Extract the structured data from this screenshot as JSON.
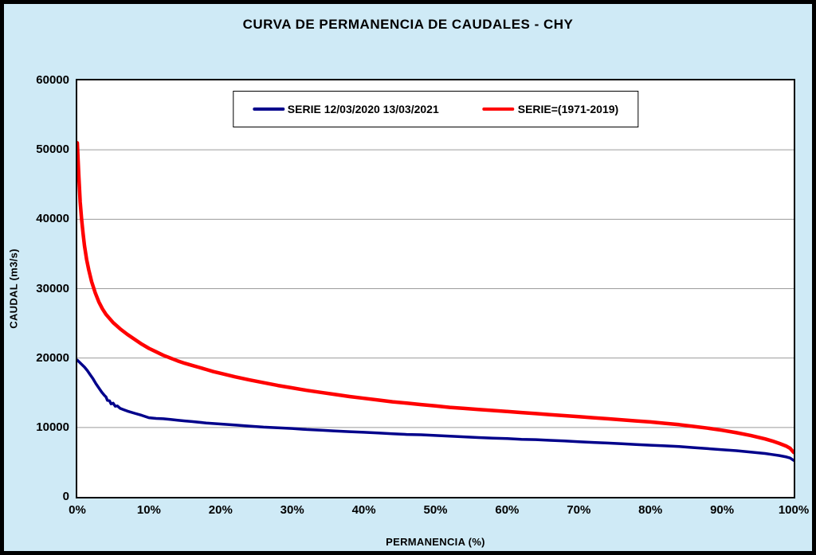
{
  "page": {
    "background": "#cfeaf6",
    "border_color": "#000000"
  },
  "chart_data": {
    "type": "line",
    "title": "CURVA DE PERMANENCIA DE CAUDALES - CHY",
    "xlabel": "PERMANENCIA (%)",
    "ylabel": "CAUDAL (m3/s)",
    "xlim": [
      0,
      100
    ],
    "ylim": [
      0,
      60000
    ],
    "x_tick_labels": [
      "0%",
      "10%",
      "20%",
      "30%",
      "40%",
      "50%",
      "60%",
      "70%",
      "80%",
      "90%",
      "100%"
    ],
    "y_tick_values": [
      0,
      10000,
      20000,
      30000,
      40000,
      50000,
      60000
    ],
    "y_tick_labels": [
      "0",
      "10000",
      "20000",
      "30000",
      "40000",
      "50000",
      "60000"
    ],
    "grid": "horizontal",
    "gridline_color": "#9c9c9c",
    "legend_position": "top-center",
    "series": [
      {
        "name": "SERIE 12/03/2020 13/03/2021",
        "color": "#00008b",
        "width": 3.5,
        "points": [
          [
            0,
            19700
          ],
          [
            0.3,
            19400
          ],
          [
            0.6,
            19100
          ],
          [
            1,
            18700
          ],
          [
            1.4,
            18200
          ],
          [
            1.8,
            17600
          ],
          [
            2.2,
            17000
          ],
          [
            2.6,
            16300
          ],
          [
            3,
            15700
          ],
          [
            3.4,
            15100
          ],
          [
            3.8,
            14600
          ],
          [
            4,
            14400
          ],
          [
            4.2,
            13900
          ],
          [
            4.5,
            13850
          ],
          [
            4.7,
            13400
          ],
          [
            5,
            13500
          ],
          [
            5.3,
            13050
          ],
          [
            5.6,
            13100
          ],
          [
            6,
            12750
          ],
          [
            6.5,
            12550
          ],
          [
            7,
            12350
          ],
          [
            8,
            12050
          ],
          [
            9,
            11750
          ],
          [
            10,
            11400
          ],
          [
            11,
            11300
          ],
          [
            12,
            11250
          ],
          [
            13,
            11150
          ],
          [
            14,
            11050
          ],
          [
            15,
            10950
          ],
          [
            16,
            10850
          ],
          [
            18,
            10650
          ],
          [
            20,
            10500
          ],
          [
            22,
            10350
          ],
          [
            24,
            10200
          ],
          [
            26,
            10050
          ],
          [
            28,
            9950
          ],
          [
            30,
            9850
          ],
          [
            32,
            9700
          ],
          [
            34,
            9600
          ],
          [
            36,
            9500
          ],
          [
            38,
            9400
          ],
          [
            40,
            9300
          ],
          [
            42,
            9200
          ],
          [
            44,
            9100
          ],
          [
            46,
            9000
          ],
          [
            48,
            8950
          ],
          [
            50,
            8850
          ],
          [
            52,
            8750
          ],
          [
            54,
            8650
          ],
          [
            56,
            8550
          ],
          [
            58,
            8450
          ],
          [
            60,
            8400
          ],
          [
            62,
            8300
          ],
          [
            64,
            8250
          ],
          [
            66,
            8150
          ],
          [
            68,
            8050
          ],
          [
            70,
            7950
          ],
          [
            72,
            7850
          ],
          [
            74,
            7750
          ],
          [
            76,
            7650
          ],
          [
            78,
            7550
          ],
          [
            80,
            7450
          ],
          [
            82,
            7350
          ],
          [
            84,
            7250
          ],
          [
            86,
            7100
          ],
          [
            88,
            6950
          ],
          [
            90,
            6800
          ],
          [
            92,
            6650
          ],
          [
            94,
            6450
          ],
          [
            96,
            6250
          ],
          [
            97,
            6100
          ],
          [
            98,
            5950
          ],
          [
            99,
            5750
          ],
          [
            99.5,
            5600
          ],
          [
            100,
            5250
          ]
        ]
      },
      {
        "name": "SERIE=(1971-2019)",
        "color": "#ff0000",
        "width": 4.5,
        "points": [
          [
            0,
            51000
          ],
          [
            0.2,
            46500
          ],
          [
            0.4,
            42500
          ],
          [
            0.6,
            40000
          ],
          [
            0.8,
            38000
          ],
          [
            1,
            36200
          ],
          [
            1.3,
            34200
          ],
          [
            1.6,
            32700
          ],
          [
            2,
            31000
          ],
          [
            2.5,
            29400
          ],
          [
            3,
            28100
          ],
          [
            3.5,
            27100
          ],
          [
            4,
            26300
          ],
          [
            5,
            25100
          ],
          [
            6,
            24200
          ],
          [
            7,
            23400
          ],
          [
            8,
            22700
          ],
          [
            9,
            22000
          ],
          [
            10,
            21400
          ],
          [
            11,
            20900
          ],
          [
            12,
            20400
          ],
          [
            13,
            20000
          ],
          [
            14,
            19600
          ],
          [
            15,
            19250
          ],
          [
            16,
            18950
          ],
          [
            17,
            18650
          ],
          [
            18,
            18350
          ],
          [
            19,
            18050
          ],
          [
            20,
            17800
          ],
          [
            22,
            17300
          ],
          [
            24,
            16850
          ],
          [
            26,
            16450
          ],
          [
            28,
            16050
          ],
          [
            30,
            15700
          ],
          [
            32,
            15350
          ],
          [
            34,
            15050
          ],
          [
            36,
            14750
          ],
          [
            38,
            14450
          ],
          [
            40,
            14200
          ],
          [
            42,
            13950
          ],
          [
            44,
            13700
          ],
          [
            46,
            13500
          ],
          [
            48,
            13300
          ],
          [
            50,
            13100
          ],
          [
            52,
            12900
          ],
          [
            54,
            12750
          ],
          [
            56,
            12600
          ],
          [
            58,
            12450
          ],
          [
            60,
            12300
          ],
          [
            62,
            12150
          ],
          [
            64,
            12000
          ],
          [
            66,
            11850
          ],
          [
            68,
            11700
          ],
          [
            70,
            11550
          ],
          [
            72,
            11400
          ],
          [
            74,
            11250
          ],
          [
            76,
            11100
          ],
          [
            78,
            10950
          ],
          [
            80,
            10800
          ],
          [
            82,
            10600
          ],
          [
            84,
            10400
          ],
          [
            86,
            10150
          ],
          [
            88,
            9900
          ],
          [
            90,
            9600
          ],
          [
            92,
            9250
          ],
          [
            94,
            8850
          ],
          [
            96,
            8350
          ],
          [
            97,
            8050
          ],
          [
            98,
            7700
          ],
          [
            99,
            7300
          ],
          [
            99.5,
            7000
          ],
          [
            100,
            6400
          ]
        ]
      }
    ]
  }
}
